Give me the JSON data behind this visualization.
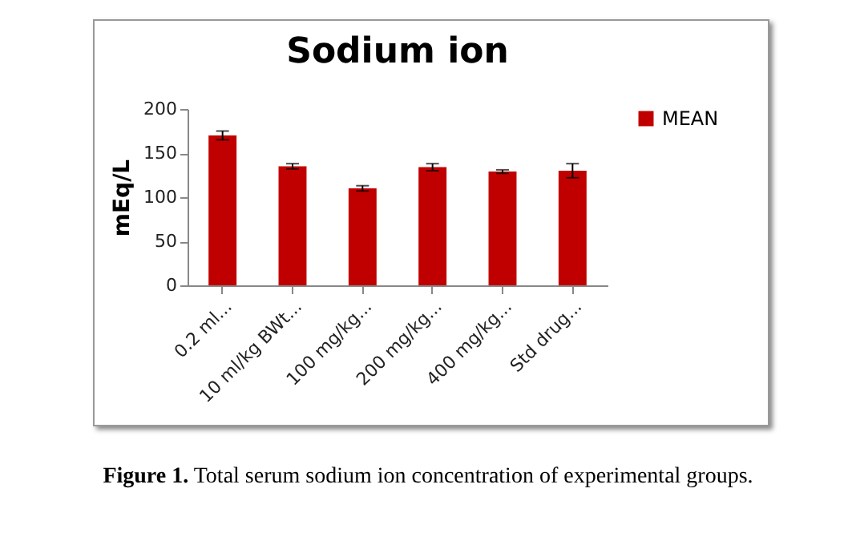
{
  "chart_data": {
    "type": "bar",
    "title": "Sodium ion",
    "ylabel": "mEq/L",
    "categories": [
      "0.2 ml...",
      "10 ml/kg BWt...",
      "100 mg/kg...",
      "200 mg/kg...",
      "400 mg/kg...",
      "Std drug..."
    ],
    "series": [
      {
        "name": "MEAN",
        "color": "#c00000",
        "values": [
          170,
          135,
          110,
          134,
          129,
          130
        ],
        "errors": [
          5,
          3,
          3,
          4,
          2,
          8
        ]
      }
    ],
    "ylim": [
      0,
      200
    ],
    "yticks": [
      0,
      50,
      100,
      150,
      200
    ],
    "grid": false,
    "legend": "right",
    "annotations": [
      "Figure 1. Total serum sodium ion concentration of experimental groups."
    ]
  }
}
